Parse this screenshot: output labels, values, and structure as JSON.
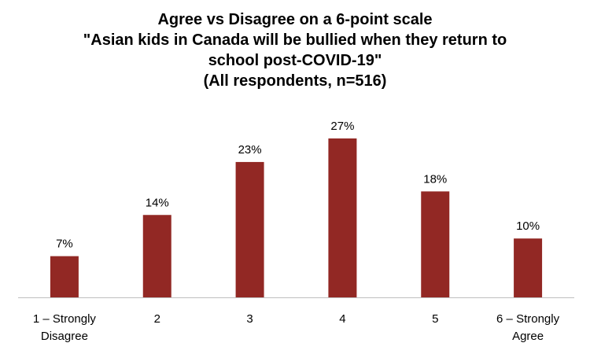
{
  "chart_data": {
    "type": "bar",
    "title_lines": [
      "Agree vs Disagree on a 6-point scale",
      "\"Asian kids in Canada will be bullied when they return to",
      "school post-COVID-19\"",
      "(All respondents, n=516)"
    ],
    "categories": [
      "1 – Strongly Disagree",
      "2",
      "3",
      "4",
      "5",
      "6 – Strongly Agree"
    ],
    "category_lines": [
      [
        "1 – Strongly",
        "Disagree"
      ],
      [
        "2"
      ],
      [
        "3"
      ],
      [
        "4"
      ],
      [
        "5"
      ],
      [
        "6 – Strongly",
        "Agree"
      ]
    ],
    "values": [
      7,
      14,
      23,
      27,
      18,
      10
    ],
    "value_labels": [
      "7%",
      "14%",
      "23%",
      "27%",
      "18%",
      "10%"
    ],
    "ylim": [
      0,
      27
    ],
    "bar_color": "#922824",
    "axis_color": "#bfbfbf",
    "grid": false,
    "legend": "none"
  }
}
